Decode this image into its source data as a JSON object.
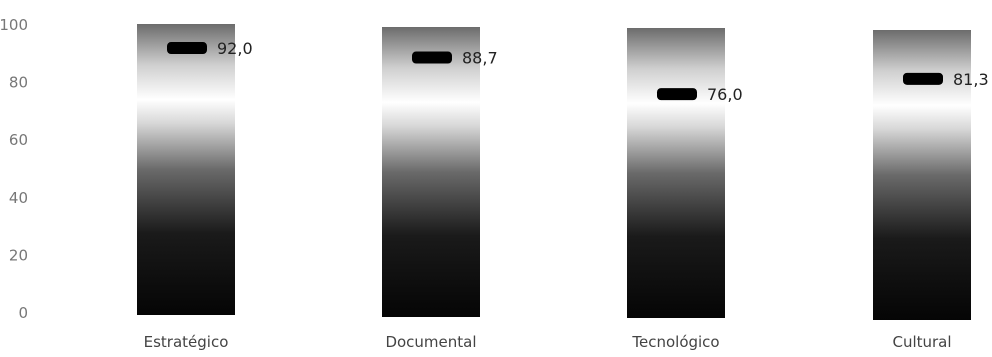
{
  "chart_data": {
    "type": "bar",
    "title": "",
    "xlabel": "",
    "ylabel": "",
    "ylim": [
      0,
      100
    ],
    "yticks": [
      0,
      20,
      40,
      60,
      80,
      100
    ],
    "categories": [
      "Estratégico",
      "Documental",
      "Tecnológico",
      "Cultural"
    ],
    "series": [
      {
        "values": [
          92.0,
          88.7,
          76.0,
          81.3
        ],
        "labels": [
          "92,0",
          "88,7",
          "76,0",
          "81,3"
        ]
      }
    ],
    "bar_fill": "vertical gradient black to white to gray",
    "marker_color": "#000000",
    "grid": false,
    "legend": "none"
  }
}
